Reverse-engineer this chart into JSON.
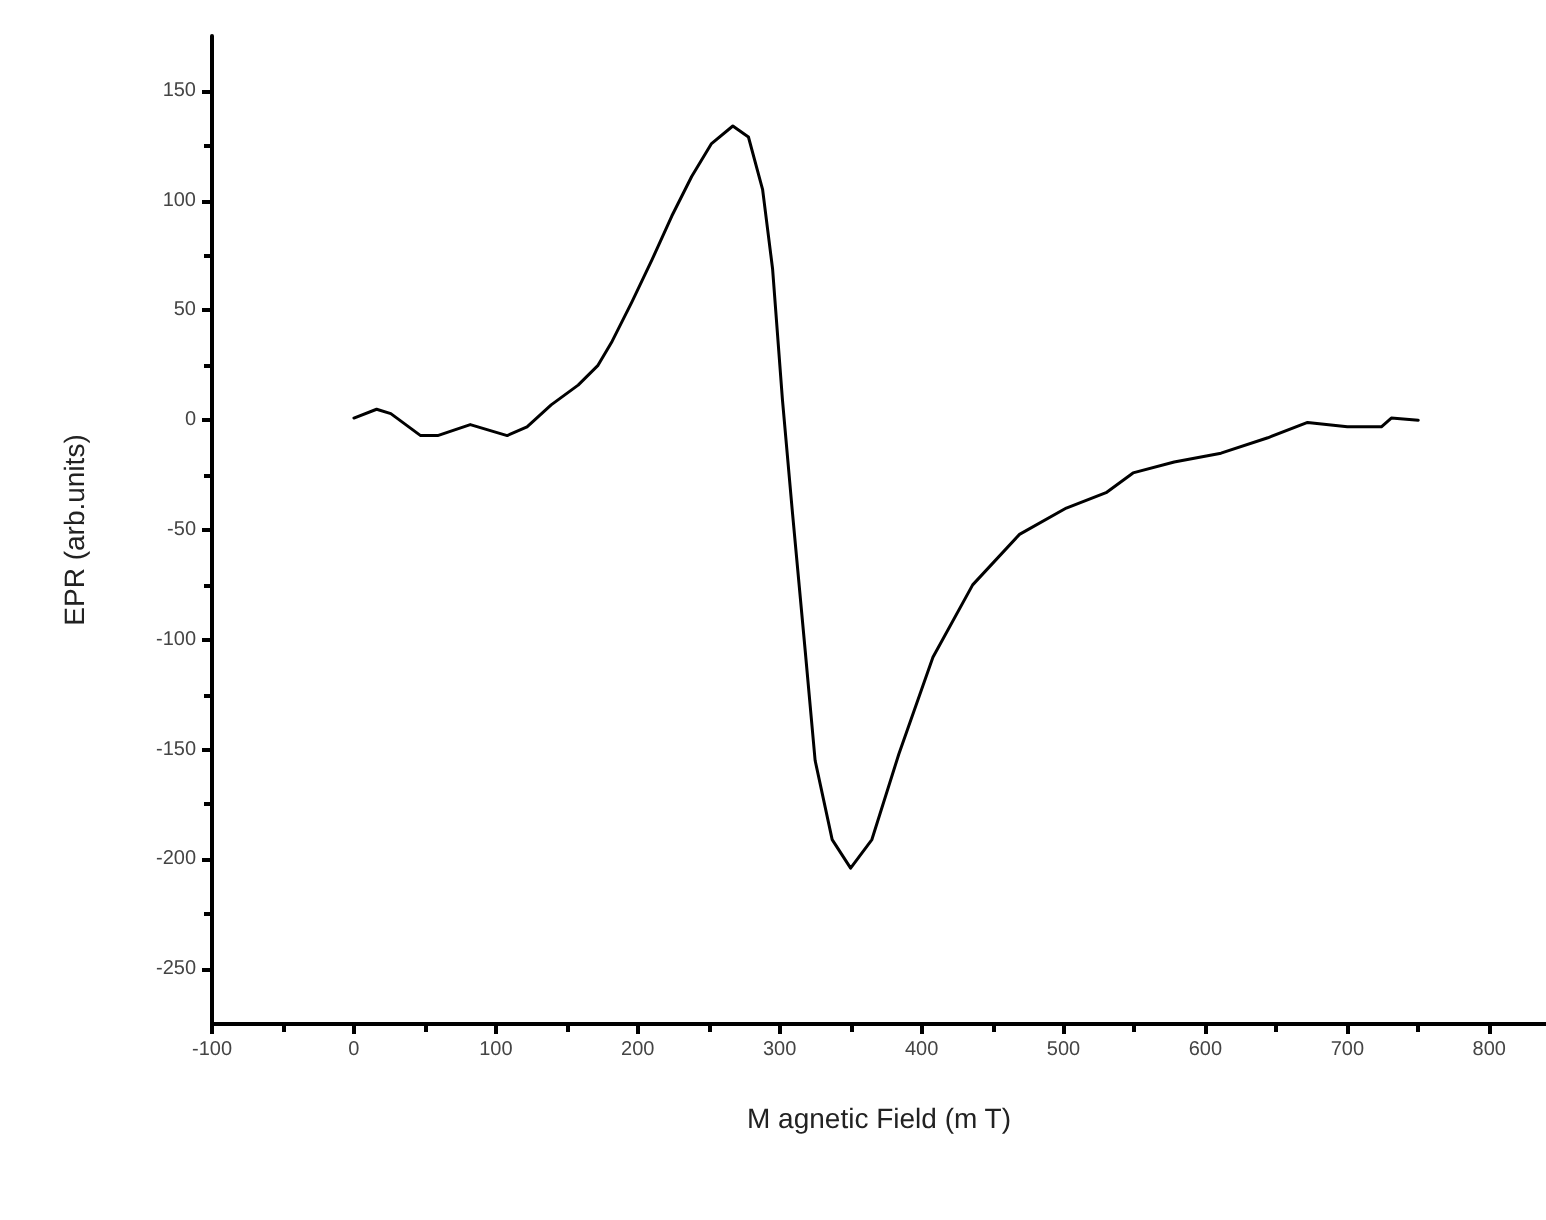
{
  "chart_data": {
    "type": "line",
    "xlabel": "M agnetic Field (m T)",
    "ylabel": "EPR (arb.units)",
    "series": [
      {
        "color": "#000000",
        "x": [
          0,
          16,
          26,
          47,
          59,
          82,
          108,
          122,
          139,
          158,
          172,
          182,
          196,
          210,
          224,
          238,
          252,
          267,
          278,
          288,
          295,
          302,
          309,
          318,
          325,
          337,
          350,
          365,
          384,
          408,
          436,
          469,
          502,
          530,
          549,
          578,
          611,
          644,
          672,
          700,
          724,
          731,
          750
        ],
        "values": [
          1,
          5,
          3,
          -7,
          -7,
          -2,
          -7,
          -3,
          7,
          16,
          25,
          36,
          54,
          73,
          93,
          111,
          126,
          134,
          129,
          105,
          69,
          9,
          -42,
          -105,
          -155,
          -191,
          -204,
          -191,
          -152,
          -108,
          -75,
          -52,
          -40,
          -33,
          -24,
          -19,
          -15,
          -8,
          -1,
          -3,
          -3,
          1,
          0
        ]
      }
    ],
    "xlim": [
      -100,
      840
    ],
    "xticks": [
      -100,
      0,
      100,
      200,
      300,
      400,
      500,
      600,
      700,
      800
    ],
    "ylim": [
      -275,
      175
    ],
    "yticks": [
      -250,
      -200,
      -150,
      -100,
      -50,
      0,
      50,
      100,
      150
    ],
    "grid": false,
    "marker": "none",
    "line_style": "solid"
  }
}
